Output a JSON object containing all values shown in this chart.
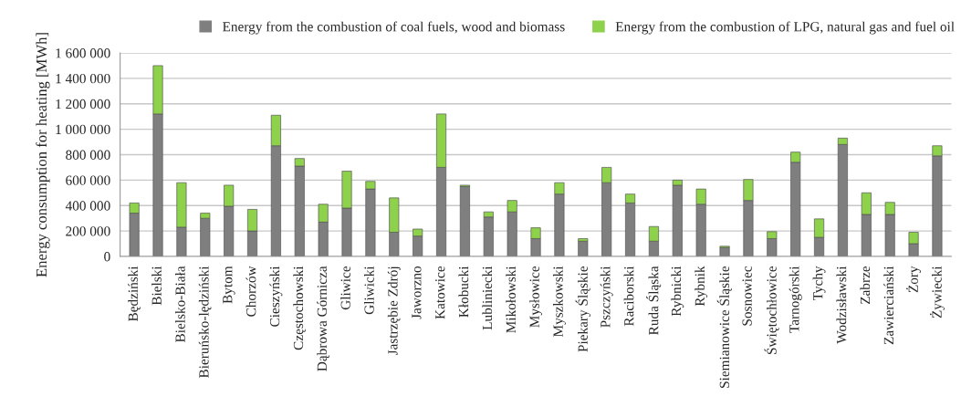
{
  "chart_data": {
    "type": "bar",
    "stacked": true,
    "ylabel": "Energy consumption for heating [MWh]",
    "categories": [
      "Będziński",
      "Bielski",
      "Bielsko-Biała",
      "Bieruńsko-lędziński",
      "Bytom",
      "Chorzów",
      "Cieszyński",
      "Częstochowski",
      "Dąbrowa Górnicza",
      "Gliwice",
      "Gliwicki",
      "Jastrzębie Zdrój",
      "Jaworzno",
      "Katowice",
      "Kłobucki",
      "Lubliniecki",
      "Mikołowski",
      "Mysłowice",
      "Myszkowski",
      "Piekary Śląskie",
      "Pszczyński",
      "Raciborski",
      "Ruda Śląska",
      "Rybnicki",
      "Rybnik",
      "Siemianowice Śląskie",
      "Sosnowiec",
      "Świętochłowice",
      "Tarnogórski",
      "Tychy",
      "Wodzisławski",
      "Zabrze",
      "Zawierciański",
      "Żory",
      "Żywiecki"
    ],
    "series": [
      {
        "name": "Energy from the combustion of coal fuels, wood and biomass",
        "color": "#7f7f7f",
        "values": [
          340000,
          1120000,
          230000,
          300000,
          395000,
          200000,
          870000,
          710000,
          270000,
          380000,
          530000,
          190000,
          160000,
          700000,
          550000,
          310000,
          350000,
          140000,
          490000,
          120000,
          580000,
          420000,
          120000,
          560000,
          410000,
          70000,
          440000,
          140000,
          740000,
          150000,
          880000,
          330000,
          330000,
          100000,
          790000
        ]
      },
      {
        "name": "Energy from the combustion of LPG, natural gas and fuel oil",
        "color": "#8ed14b",
        "values": [
          80000,
          380000,
          350000,
          40000,
          165000,
          170000,
          240000,
          60000,
          140000,
          290000,
          60000,
          270000,
          55000,
          420000,
          10000,
          40000,
          90000,
          85000,
          90000,
          20000,
          120000,
          70000,
          115000,
          40000,
          120000,
          10000,
          165000,
          55000,
          80000,
          145000,
          50000,
          170000,
          95000,
          90000,
          80000
        ]
      }
    ],
    "ylim": [
      0,
      1600000
    ],
    "yticks": [
      0,
      {
        "value": 200000,
        "label": "200 000"
      },
      {
        "value": 400000,
        "label": "400 000"
      },
      {
        "value": 600000,
        "label": "600 000"
      },
      {
        "value": 800000,
        "label": "800 000"
      },
      {
        "value": 1000000,
        "label": "1 000 000"
      },
      {
        "value": 1200000,
        "label": "1 200 000"
      },
      {
        "value": 1400000,
        "label": "1 400 000"
      },
      {
        "value": 1600000,
        "label": "1 600 000"
      }
    ],
    "grid": "y",
    "legend": "top"
  }
}
